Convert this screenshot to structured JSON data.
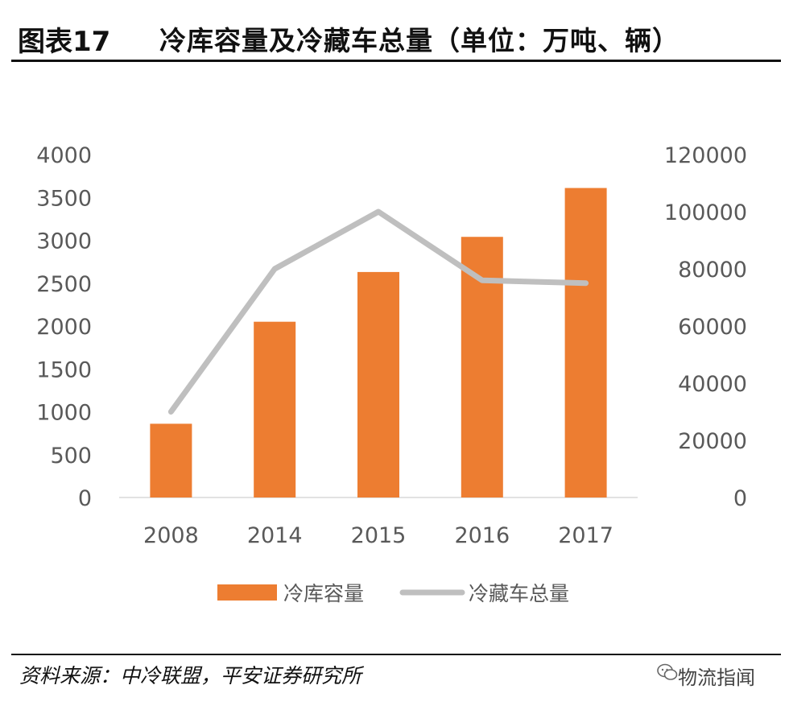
{
  "header": {
    "figure_no": "图表17",
    "title": "冷库容量及冷藏车总量（单位：万吨、辆）"
  },
  "footer": {
    "source": "资料来源：中冷联盟，平安证券研究所",
    "watermark": "物流指闻",
    "watermark_icon": "wechat-icon"
  },
  "colors": {
    "bar": "#ED7D31",
    "line": "#BFBFBF",
    "axis": "#D9D9D9",
    "text": "#595959"
  },
  "chart_data": {
    "type": "bar",
    "categories": [
      "2008",
      "2014",
      "2015",
      "2016",
      "2017"
    ],
    "series": [
      {
        "name": "冷库容量",
        "type": "bar",
        "axis": "left",
        "values": [
          860,
          2050,
          2630,
          3040,
          3610
        ]
      },
      {
        "name": "冷藏车总量",
        "type": "line",
        "axis": "right",
        "values": [
          30000,
          80000,
          100000,
          76000,
          75000
        ]
      }
    ],
    "y_left": {
      "min": 0,
      "max": 4000,
      "ticks": [
        0,
        500,
        1000,
        1500,
        2000,
        2500,
        3000,
        3500,
        4000
      ]
    },
    "y_right": {
      "min": 0,
      "max": 120000,
      "ticks": [
        0,
        20000,
        40000,
        60000,
        80000,
        100000,
        120000
      ]
    },
    "grid": false,
    "legend": "bottom"
  }
}
